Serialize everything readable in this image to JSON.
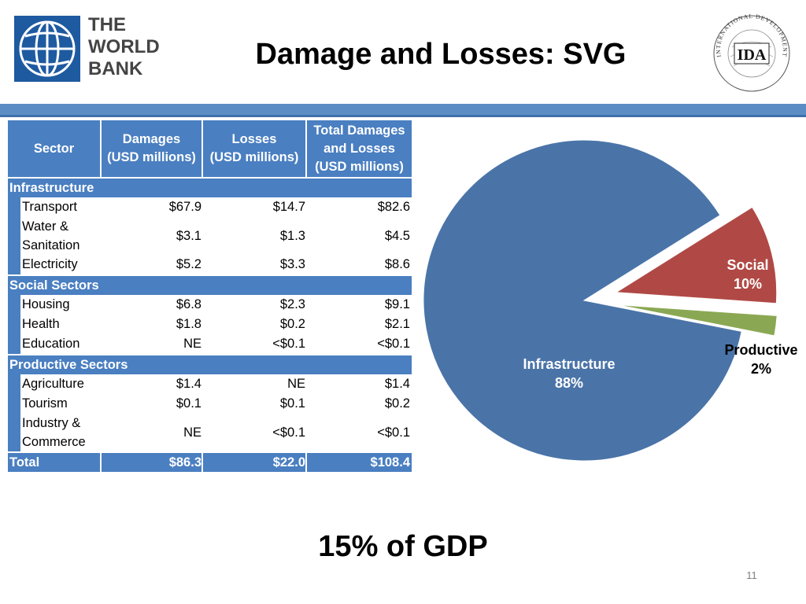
{
  "header": {
    "wb_logo_lines": [
      "THE",
      "WORLD",
      "BANK"
    ],
    "title": "Damage and Losses: SVG",
    "ida_seal_text": "INTERNATIONAL DEVELOPMENT ASSOCIATION",
    "ida_seal_mark": "IDA"
  },
  "table": {
    "headers": {
      "sector": "Sector",
      "damages_1": "Damages",
      "damages_2": "(USD millions)",
      "losses_1": "Losses",
      "losses_2": "(USD millions)",
      "total_1": "Total Damages",
      "total_2": "and Losses",
      "total_3": "(USD millions)"
    },
    "groups": [
      {
        "name": "Infrastructure",
        "rows": [
          {
            "sector": "Transport",
            "damages": "$67.9",
            "losses": "$14.7",
            "total": "$82.6"
          },
          {
            "sector_1": "Water &",
            "sector_2": "Sanitation",
            "damages": "$3.1",
            "losses": "$1.3",
            "total": "$4.5"
          },
          {
            "sector": "Electricity",
            "damages": "$5.2",
            "losses": "$3.3",
            "total": "$8.6"
          }
        ]
      },
      {
        "name": "Social Sectors",
        "rows": [
          {
            "sector": "Housing",
            "damages": "$6.8",
            "losses": "$2.3",
            "total": "$9.1"
          },
          {
            "sector": "Health",
            "damages": "$1.8",
            "losses": "$0.2",
            "total": "$2.1"
          },
          {
            "sector": "Education",
            "damages": "NE",
            "losses": "<$0.1",
            "total": "<$0.1"
          }
        ]
      },
      {
        "name": "Productive Sectors",
        "rows": [
          {
            "sector": "Agriculture",
            "damages": "$1.4",
            "losses": "NE",
            "total": "$1.4"
          },
          {
            "sector": "Tourism",
            "damages": "$0.1",
            "losses": "$0.1",
            "total": "$0.2"
          },
          {
            "sector_1": "Industry &",
            "sector_2": "Commerce",
            "damages": "NE",
            "losses": "<$0.1",
            "total": "<$0.1"
          }
        ]
      }
    ],
    "total": {
      "label": "Total",
      "damages": "$86.3",
      "losses": "$22.0",
      "total": "$108.4"
    }
  },
  "chart_data": {
    "type": "pie",
    "series": [
      {
        "name": "Infrastructure",
        "value": 88,
        "label": "88%",
        "color": "#4a74a8"
      },
      {
        "name": "Social",
        "value": 10,
        "label": "10%",
        "color": "#b04945"
      },
      {
        "name": "Productive",
        "value": 2,
        "label": "2%",
        "color": "#8aa853"
      }
    ],
    "exploded": [
      "Social",
      "Productive"
    ]
  },
  "footer": {
    "gdp": "15% of GDP",
    "page_number": "11"
  },
  "colors": {
    "header_rule": "#5b8cc4",
    "table_header": "#4a7fc1",
    "wb_blue": "#1e5aa0"
  }
}
